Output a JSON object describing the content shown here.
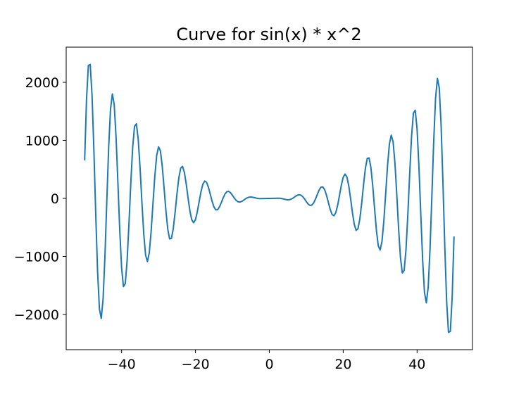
{
  "chart_data": {
    "type": "line",
    "title": "Curve for sin(x) * x^2",
    "color": "#1f77b4",
    "x": [
      -50,
      -49.5,
      -49,
      -48.5,
      -48,
      -47.5,
      -47,
      -46.5,
      -46,
      -45.5,
      -45,
      -44.5,
      -44,
      -43.5,
      -43,
      -42.5,
      -42,
      -41.5,
      -41,
      -40.5,
      -40,
      -39.5,
      -39,
      -38.5,
      -38,
      -37.5,
      -37,
      -36.5,
      -36,
      -35.5,
      -35,
      -34.5,
      -34,
      -33.5,
      -33,
      -32.5,
      -32,
      -31.5,
      -31,
      -30.5,
      -30,
      -29.5,
      -29,
      -28.5,
      -28,
      -27.5,
      -27,
      -26.5,
      -26,
      -25.5,
      -25,
      -24.5,
      -24,
      -23.5,
      -23,
      -22.5,
      -22,
      -21.5,
      -21,
      -20.5,
      -20,
      -19.5,
      -19,
      -18.5,
      -18,
      -17.5,
      -17,
      -16.5,
      -16,
      -15.5,
      -15,
      -14.5,
      -14,
      -13.5,
      -13,
      -12.5,
      -12,
      -11.5,
      -11,
      -10.5,
      -10,
      -9.5,
      -9,
      -8.5,
      -8,
      -7.5,
      -7,
      -6.5,
      -6,
      -5.5,
      -5,
      -4.5,
      -4,
      -3.5,
      -3,
      -2.5,
      -2,
      -1.5,
      -1,
      -0.5,
      0,
      0.5,
      1,
      1.5,
      2,
      2.5,
      3,
      3.5,
      4,
      4.5,
      5,
      5.5,
      6,
      6.5,
      7,
      7.5,
      8,
      8.5,
      9,
      9.5,
      10,
      10.5,
      11,
      11.5,
      12,
      12.5,
      13,
      13.5,
      14,
      14.5,
      15,
      15.5,
      16,
      16.5,
      17,
      17.5,
      18,
      18.5,
      19,
      19.5,
      20,
      20.5,
      21,
      21.5,
      22,
      22.5,
      23,
      23.5,
      24,
      24.5,
      25,
      25.5,
      26,
      26.5,
      27,
      27.5,
      28,
      28.5,
      29,
      29.5,
      30,
      30.5,
      31,
      31.5,
      32,
      32.5,
      33,
      33.5,
      34,
      34.5,
      35,
      35.5,
      36,
      36.5,
      37,
      37.5,
      38,
      38.5,
      39,
      39.5,
      40,
      40.5,
      41,
      41.5,
      42,
      42.5,
      43,
      43.5,
      44,
      44.5,
      45,
      45.5,
      46,
      46.5,
      47,
      47.5,
      48,
      48.5,
      49,
      49.5,
      50
    ],
    "values": [
      655.9,
      1698.0,
      2290.1,
      2307.6,
      1770.2,
      828.7,
      -273.0,
      -1263.2,
      -1908.2,
      -2067.4,
      -1723.1,
      -980.0,
      -34.3,
      877.6,
      1538.0,
      1799.2,
      1616.9,
      1054.9,
      266.6,
      -548.0,
      -1192.2,
      -1519.1,
      -1466.2,
      -1064.3,
      -427.9,
      278.2,
      881.0,
      1241.2,
      1285.4,
      1019.6,
      524.5,
      -68.4,
      -611.6,
      -977.6,
      -1088.9,
      -933.5,
      -564.6,
      -83.3,
      388.2,
      737.8,
      889.2,
      819.0,
      558.1,
      181.8,
      -212.4,
      -528.8,
      -697.2,
      -687.7,
      -515.5,
      -233.5,
      82.8,
      355.0,
      521.6,
      551.2,
      447.6,
      246.6,
      4.3,
      -218.0,
      -369.0,
      -418.9,
      -365.2,
      -230.2,
      -54.1,
      117.2,
      243.3,
      298.8,
      277.8,
      193.8,
      73.7,
      -49.6,
      -146.3,
      -196.6,
      -194.2,
      -146.5,
      -71.0,
      10.4,
      77.3,
      115.8,
      121,
      97.0,
      54.4,
      6.8,
      -33.4,
      -57.7,
      -63.3,
      -52.8,
      -32.2,
      -9.1,
      10.1,
      21.3,
      24.0,
      19.8,
      12.1,
      4.3,
      -1.27,
      -3.74,
      -3.64,
      -2.24,
      -0.84,
      -0.12,
      0,
      0.12,
      0.84,
      2.24,
      3.64,
      3.74,
      1.27,
      -4.3,
      -12.1,
      -19.8,
      -24.0,
      -21.3,
      -10.1,
      9.1,
      32.2,
      52.8,
      63.3,
      57.7,
      33.4,
      -6.8,
      -54.4,
      -97.0,
      -121,
      -115.8,
      -77.3,
      -10.4,
      71.0,
      146.5,
      194.2,
      196.6,
      146.3,
      49.6,
      -73.7,
      -193.8,
      -277.8,
      -298.8,
      -243.3,
      -117.2,
      54.1,
      230.2,
      365.2,
      418.9,
      369.0,
      218.0,
      -4.3,
      -246.6,
      -447.6,
      -551.2,
      -521.6,
      -355.0,
      -82.8,
      233.5,
      515.5,
      687.7,
      697.2,
      528.8,
      212.4,
      -181.8,
      -558.1,
      -819.0,
      -889.2,
      -737.8,
      -388.2,
      83.3,
      564.6,
      933.5,
      1088.9,
      977.6,
      611.6,
      68.4,
      -524.5,
      -1019.6,
      -1285.4,
      -1241.2,
      -881.0,
      -278.2,
      427.9,
      1064.3,
      1466.2,
      1519.1,
      1192.2,
      548.0,
      -266.6,
      -1054.9,
      -1616.9,
      -1799.2,
      -1538.0,
      -877.6,
      34.3,
      980.0,
      1723.1,
      2067.4,
      1908.2,
      1263.2,
      273.0,
      -828.7,
      -1770.2,
      -2307.6,
      -2290.1,
      -1698.0,
      -655.9
    ],
    "xlim": [
      -55,
      55
    ],
    "xticks": [
      {
        "value": -40,
        "label": "−40"
      },
      {
        "value": -20,
        "label": "−20"
      },
      0,
      20,
      40
    ],
    "ylim": [
      -2606,
      2606
    ],
    "yticks": [
      {
        "value": -2000,
        "label": "−2000"
      },
      {
        "value": -1000,
        "label": "−1000"
      },
      0,
      1000,
      2000
    ]
  }
}
